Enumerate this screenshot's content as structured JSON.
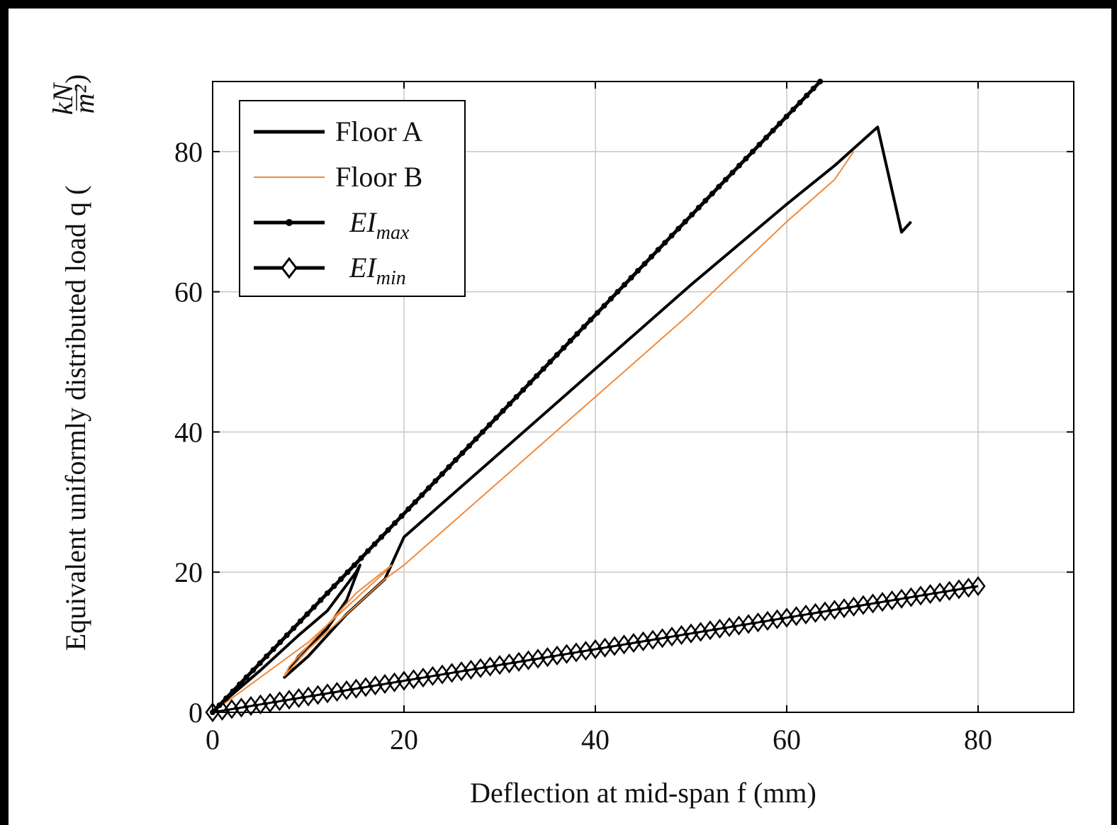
{
  "chart_data": {
    "type": "line",
    "xlabel": "Deflection at mid-span f (mm)",
    "ylabel": "Equivalent uniformly distributed load q (",
    "ylabel_unit_num": "kN",
    "ylabel_unit_den": "m²",
    "ylabel_close": ")",
    "xlim": [
      0,
      90
    ],
    "ylim": [
      0,
      90
    ],
    "xticks": [
      0,
      20,
      40,
      60,
      80
    ],
    "yticks": [
      0,
      20,
      40,
      60,
      80
    ],
    "grid": true,
    "legend_position": "top-left",
    "series": [
      {
        "name": "Floor A",
        "style": "solid-thick",
        "color": "#000000",
        "points": [
          [
            0,
            0
          ],
          [
            2,
            2.5
          ],
          [
            5,
            6
          ],
          [
            9,
            11
          ],
          [
            12,
            14.5
          ],
          [
            15,
            20
          ],
          [
            15.4,
            21
          ],
          [
            14,
            16
          ],
          [
            12,
            12
          ],
          [
            9,
            8
          ],
          [
            7.5,
            5
          ],
          [
            10,
            8
          ],
          [
            14,
            14
          ],
          [
            18,
            19
          ],
          [
            20,
            25
          ],
          [
            25,
            31
          ],
          [
            30,
            37
          ],
          [
            40,
            49
          ],
          [
            50,
            61
          ],
          [
            60,
            72.5
          ],
          [
            65,
            78
          ],
          [
            69.5,
            83.5
          ],
          [
            72,
            68.5
          ],
          [
            73,
            70
          ]
        ]
      },
      {
        "name": "Floor B",
        "style": "solid-thin",
        "color": "#f08a3c",
        "points": [
          [
            0,
            0
          ],
          [
            2,
            2
          ],
          [
            6,
            6
          ],
          [
            10,
            10
          ],
          [
            14,
            15
          ],
          [
            18,
            20
          ],
          [
            18.7,
            21
          ],
          [
            15,
            17
          ],
          [
            11,
            11
          ],
          [
            8,
            6.5
          ],
          [
            7.5,
            5.2
          ],
          [
            10,
            9
          ],
          [
            14,
            14
          ],
          [
            18,
            19
          ],
          [
            20,
            21
          ],
          [
            30,
            33
          ],
          [
            40,
            45
          ],
          [
            50,
            57
          ],
          [
            60,
            70
          ],
          [
            65,
            76
          ],
          [
            67,
            80
          ]
        ]
      },
      {
        "name": "EImax",
        "legend_main": "EI",
        "legend_sub": "max",
        "style": "thick-markers",
        "color": "#000000",
        "points": [
          [
            0,
            0
          ],
          [
            63.5,
            90
          ]
        ]
      },
      {
        "name": "EImin",
        "legend_main": "EI",
        "legend_sub": "min",
        "style": "diamond-markers",
        "color": "#000000",
        "points": [
          [
            0,
            0
          ],
          [
            80,
            18
          ]
        ]
      }
    ]
  }
}
